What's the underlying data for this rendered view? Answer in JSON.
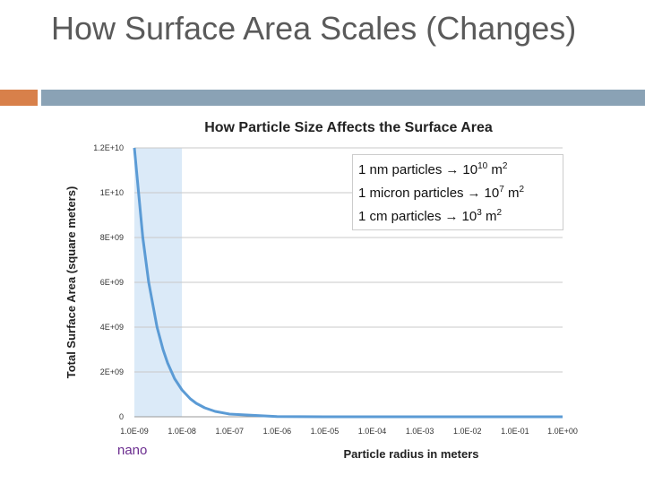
{
  "slide": {
    "title": "How Surface Area Scales (Changes)",
    "nano_label": "nano",
    "accent_left_color": "#d8804a",
    "accent_bar_color": "#8aa2b5"
  },
  "callout": {
    "lines": [
      {
        "text": "1 nm particles",
        "base": "10",
        "exp": "10",
        "unit": "m",
        "unit_exp": "2"
      },
      {
        "text": "1 micron particles",
        "base": "10",
        "exp": "7",
        "unit": "m",
        "unit_exp": "2"
      },
      {
        "text": "1 cm particles",
        "base": "10",
        "exp": "3",
        "unit": "m",
        "unit_exp": "2"
      }
    ],
    "arrow_icon": "right-arrow-icon"
  },
  "chart_data": {
    "type": "line",
    "title": "How Particle Size Affects the Surface Area",
    "xlabel": "Particle radius in meters",
    "ylabel": "Total Surface Area (square meters)",
    "x_scale": "log",
    "x_ticks": [
      "1.0E-09",
      "1.0E-08",
      "1.0E-07",
      "1.0E-06",
      "1.0E-05",
      "1.0E-04",
      "1.0E-03",
      "1.0E-02",
      "1.0E-01",
      "1.0E+00"
    ],
    "y_ticks": [
      "0",
      "2E+09",
      "4E+09",
      "6E+09",
      "8E+09",
      "1E+10",
      "1.2E+10"
    ],
    "ylim": [
      0,
      12000000000
    ],
    "highlight_region": {
      "x_from": 1e-09,
      "x_to": 1e-08,
      "color": "#dbeaf8"
    },
    "grid": true,
    "series": [
      {
        "color": "#5b9bd5",
        "x": [
          1e-09,
          1.5e-09,
          2e-09,
          3e-09,
          4e-09,
          5e-09,
          7e-09,
          1e-08,
          1.5e-08,
          2e-08,
          3e-08,
          5e-08,
          1e-07,
          1e-06,
          1e-05,
          0.0001,
          0.001,
          0.01,
          0.1,
          1
        ],
        "y": [
          12000000000,
          8000000000,
          6000000000,
          4000000000,
          3000000000,
          2400000000,
          1700000000,
          1200000000,
          800000000,
          600000000,
          400000000,
          240000000,
          120000000,
          12000000,
          1200000,
          120000,
          12000,
          1200,
          120,
          12
        ]
      }
    ]
  }
}
